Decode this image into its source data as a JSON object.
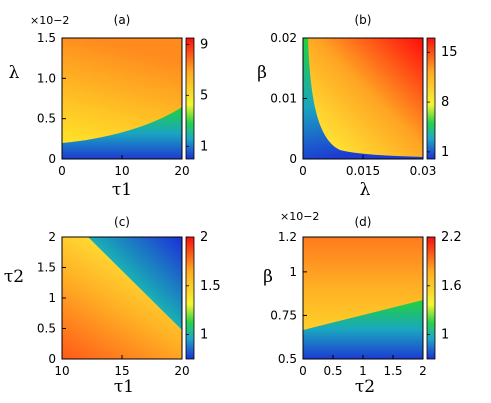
{
  "chart_data": [
    {
      "type": "heatmap",
      "title": "(a)",
      "xlabel": "τ1",
      "ylabel": "λ",
      "y_multiplier": "×10−2",
      "xlim": [
        0,
        20
      ],
      "ylim": [
        0,
        1.5
      ],
      "xticks": [
        "0",
        "10",
        "20"
      ],
      "yticks": [
        "0",
        "0.5",
        "1.0",
        "1.5"
      ],
      "colorbar": {
        "min": 0,
        "max": 9.5,
        "ticks": [
          "1",
          "5",
          "9"
        ]
      },
      "grid": false
    },
    {
      "type": "heatmap",
      "title": "(b)",
      "xlabel": "λ",
      "ylabel": "β",
      "xlim": [
        0,
        0.03
      ],
      "ylim": [
        0,
        0.02
      ],
      "xticks": [
        "0",
        "0.015",
        "0.03"
      ],
      "yticks": [
        "0",
        "0.01",
        "0.02"
      ],
      "colorbar": {
        "min": 0,
        "max": 17,
        "ticks": [
          "1",
          "8",
          "15"
        ]
      },
      "grid": false
    },
    {
      "type": "heatmap",
      "title": "(c)",
      "xlabel": "τ1",
      "ylabel": "τ2",
      "xlim": [
        10,
        20
      ],
      "ylim": [
        0,
        2
      ],
      "xticks": [
        "10",
        "15",
        "20"
      ],
      "yticks": [
        "0",
        "0.5",
        "1",
        "1.5",
        "2"
      ],
      "colorbar": {
        "min": 0.75,
        "max": 2,
        "ticks": [
          "1",
          "1.5",
          "2"
        ]
      },
      "grid": false
    },
    {
      "type": "heatmap",
      "title": "(d)",
      "xlabel": "τ2",
      "ylabel": "β",
      "y_multiplier": "×10−2",
      "xlim": [
        0,
        2
      ],
      "ylim": [
        0.5,
        1.2
      ],
      "xticks": [
        "0",
        "0.5",
        "1",
        "1.5",
        "2"
      ],
      "yticks": [
        "0.5",
        "0.75",
        "1",
        "1.2"
      ],
      "colorbar": {
        "min": 0.7,
        "max": 2.2,
        "ticks": [
          "1",
          "1.6",
          "2.2"
        ]
      },
      "grid": false
    }
  ]
}
